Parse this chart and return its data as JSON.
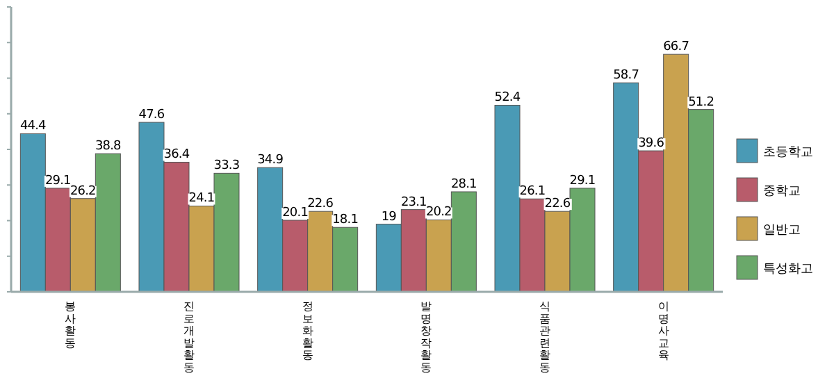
{
  "chart_data": {
    "type": "bar",
    "categories": [
      "봉사활동",
      "진로개발활동",
      "정보화활동",
      "발명창작활동",
      "식품관련활동",
      "이명사교육"
    ],
    "series": [
      {
        "name": "초등학교",
        "color": "#4a9ab5",
        "values": [
          44.4,
          47.6,
          34.9,
          19,
          52.4,
          58.7
        ]
      },
      {
        "name": "중학교",
        "color": "#b85c6b",
        "values": [
          29.1,
          36.4,
          20.1,
          23.1,
          26.1,
          39.6
        ]
      },
      {
        "name": "일반고",
        "color": "#c9a24f",
        "values": [
          26.2,
          24.1,
          22.6,
          20.2,
          22.6,
          66.7
        ]
      },
      {
        "name": "특성화고",
        "color": "#6aa86a",
        "values": [
          38.8,
          33.3,
          18.1,
          28.1,
          29.1,
          51.2
        ]
      }
    ],
    "ylim": [
      0,
      80
    ],
    "yticks": [
      {
        "value": 0,
        "label": null
      },
      {
        "value": 10,
        "label": null
      },
      {
        "value": 20,
        "label": null
      },
      {
        "value": 30,
        "label": null
      },
      {
        "value": 40,
        "label": null
      },
      {
        "value": 50,
        "label": null
      },
      {
        "value": 60,
        "label": null
      },
      {
        "value": 70,
        "label": null
      },
      {
        "value": 80,
        "label": null
      }
    ],
    "data_labels": true,
    "legend": "right",
    "grid": false
  }
}
